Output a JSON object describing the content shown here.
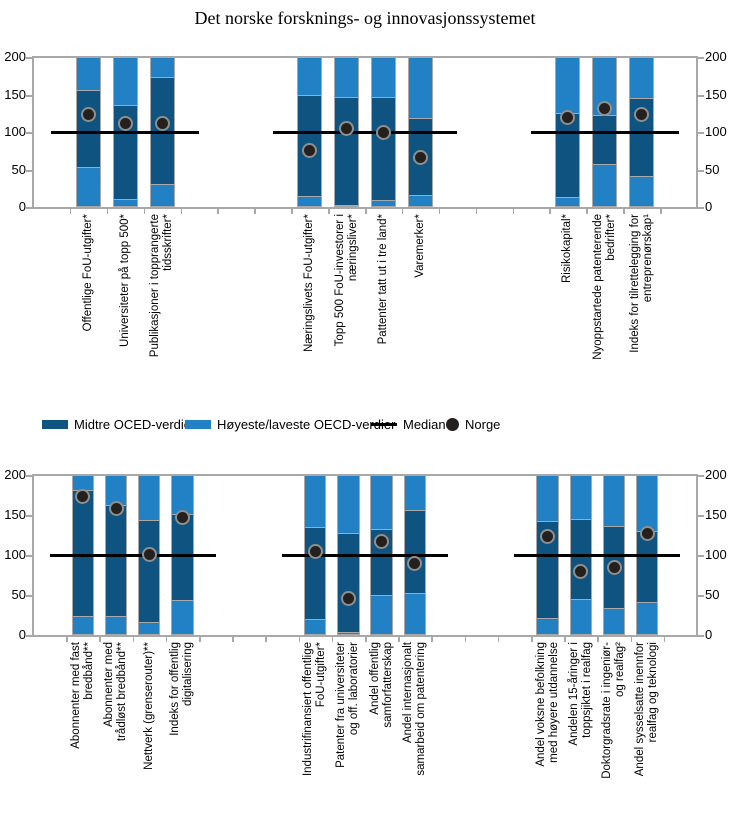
{
  "title": "Det norske forsknings- og innovasjonssystemet",
  "legend": {
    "items": [
      {
        "type": "swatch-dark",
        "label": "Midtre OCED-verdier"
      },
      {
        "type": "swatch-light",
        "label": "Høyeste/laveste OECD-verdier"
      },
      {
        "type": "line",
        "label": "Median"
      },
      {
        "type": "dot",
        "label": "Norge"
      }
    ]
  },
  "colors": {
    "mid": "#0f5380",
    "range": "#2280c4",
    "median": "#000000",
    "norway": "#24201e",
    "norway_ring": "#8f8f8f",
    "axis": "#a8a8a8",
    "segment_border": "#a8a8a8",
    "text": "#000000"
  },
  "chart_data": [
    {
      "panel": "top",
      "type": "bar",
      "ylim": [
        0,
        200
      ],
      "yticks": [
        0,
        50,
        100,
        150,
        200
      ],
      "median": 100,
      "legend_entries": [
        "Midtre OCED-verdier",
        "Høyeste/laveste OECD-verdier",
        "Median",
        "Norge"
      ],
      "groups": [
        {
          "bars": [
            {
              "label": "Offentlige FoU-utgifter*",
              "lines": [
                "Offentlige FoU-utgifter*"
              ],
              "range": [
                0,
                200
              ],
              "mid": [
                52,
                156
              ],
              "norge": 124
            },
            {
              "label": "Universiteter på topp 500*",
              "lines": [
                "Universiteter på topp 500*"
              ],
              "range": [
                0,
                200
              ],
              "mid": [
                9,
                136
              ],
              "norge": 112
            },
            {
              "label": "Publikasjoner i topprangerte tidsskrifter*",
              "lines": [
                "Publikasjoner i topprangerte",
                "tidsskrifter*"
              ],
              "range": [
                0,
                200
              ],
              "mid": [
                30,
                174
              ],
              "norge": 111
            }
          ]
        },
        {
          "bars": [
            {
              "label": "Næringslivets FoU-utgifter*",
              "lines": [
                "Næringslivets FoU-utgifter*"
              ],
              "range": [
                0,
                200
              ],
              "mid": [
                13,
                150
              ],
              "norge": 75
            },
            {
              "label": "Topp 500 FoU-investorer i næringsliver*",
              "lines": [
                "Topp 500 FoU-investorer i",
                "næringsliver*"
              ],
              "range": [
                0,
                200
              ],
              "mid": [
                2,
                147
              ],
              "norge": 105
            },
            {
              "label": "Pattenter tatt ut i tre land*",
              "lines": [
                "Pattenter tatt ut i tre land*"
              ],
              "range": [
                0,
                200
              ],
              "mid": [
                8,
                147
              ],
              "norge": 100
            },
            {
              "label": "Varemerker*",
              "lines": [
                "Varemerker*"
              ],
              "range": [
                0,
                200
              ],
              "mid": [
                15,
                119
              ],
              "norge": 66
            }
          ]
        },
        {
          "bars": [
            {
              "label": "Risikokapital*",
              "lines": [
                "Risikokapital*"
              ],
              "range": [
                0,
                200
              ],
              "mid": [
                12,
                125
              ],
              "norge": 120
            },
            {
              "label": "Nyoppstartede patenterende bedrifter*",
              "lines": [
                "Nyoppstartede patenterende",
                "bedrifter*"
              ],
              "range": [
                0,
                200
              ],
              "mid": [
                56,
                123
              ],
              "norge": 132
            },
            {
              "label": "Indeks for tilrettelegging for entreprenørskap¹",
              "lines": [
                "Indeks for tilrettelegging for",
                "entreprenørskap¹"
              ],
              "range": [
                0,
                200
              ],
              "mid": [
                40,
                145
              ],
              "norge": 124
            }
          ]
        }
      ]
    },
    {
      "panel": "bottom",
      "type": "bar",
      "ylim": [
        0,
        200
      ],
      "yticks": [
        0,
        50,
        100,
        150,
        200
      ],
      "median": 100,
      "legend_entries": [
        "Midtre OCED-verdier",
        "Høyeste/laveste OECD-verdier",
        "Median",
        "Norge"
      ],
      "groups": [
        {
          "bars": [
            {
              "label": "Abonnenter med fast bredbånd**",
              "lines": [
                "Abonnenter med fast",
                "bredbånd**"
              ],
              "range": [
                0,
                200
              ],
              "mid": [
                23,
                181
              ],
              "norge": 173
            },
            {
              "label": "Abonnenter med trådløst bredbånd**",
              "lines": [
                "Abonnenter med",
                "trådløst bredbånd**"
              ],
              "range": [
                0,
                200
              ],
              "mid": [
                22,
                163
              ],
              "norge": 158
            },
            {
              "label": "Nettverk (grenserouter)**",
              "lines": [
                "Nettverk (grenserouter)**"
              ],
              "range": [
                0,
                200
              ],
              "mid": [
                15,
                144
              ],
              "norge": 101
            },
            {
              "label": "Indeks for offentlig digitalisering",
              "lines": [
                "Indeks for offentlig",
                "digitalisering"
              ],
              "range": [
                0,
                200
              ],
              "mid": [
                43,
                151
              ],
              "norge": 147
            }
          ]
        },
        {
          "bars": [
            {
              "label": "Industrifinansiert offentlige FoU-utgifter*",
              "lines": [
                "Industrifinansiert offentlige",
                "FoU-utgifter*"
              ],
              "range": [
                0,
                200
              ],
              "mid": [
                19,
                135
              ],
              "norge": 104
            },
            {
              "label": "Patenter fra universiteter og off. laboratorier",
              "lines": [
                "Patenter fra universiteter",
                "og off. laboratorier"
              ],
              "range": [
                0,
                200
              ],
              "mid": [
                3,
                127
              ],
              "norge": 46
            },
            {
              "label": "Andel offentlig samforfatterskap",
              "lines": [
                "Andel offentlig",
                "samforfatterskap"
              ],
              "range": [
                0,
                200
              ],
              "mid": [
                49,
                132
              ],
              "norge": 117
            },
            {
              "label": "Andel internasjonalt samarbeid om patentering",
              "lines": [
                "Andel internasjonalt",
                "samarbeid om patentering"
              ],
              "range": [
                0,
                200
              ],
              "mid": [
                51,
                156
              ],
              "norge": 90
            }
          ]
        },
        {
          "bars": [
            {
              "label": "Andel voksne befolkning med høyere utdannelse",
              "lines": [
                "Andel voksne befolkning",
                "med høyere utdannelse"
              ],
              "range": [
                0,
                200
              ],
              "mid": [
                20,
                142
              ],
              "norge": 123
            },
            {
              "label": "Andelen 15-åringer i toppsjiktet i realfag",
              "lines": [
                "Andelen 15-åringer i",
                "toppsjiktet i realfag"
              ],
              "range": [
                0,
                200
              ],
              "mid": [
                44,
                145
              ],
              "norge": 79
            },
            {
              "label": "Doktorgradsrate i ingeniør- og realfag²",
              "lines": [
                "Doktorgradsrate i ingeniør-",
                "og realfag²"
              ],
              "range": [
                0,
                200
              ],
              "mid": [
                33,
                136
              ],
              "norge": 85
            },
            {
              "label": "Andel sysselsatte inennfor realfag og teknologi",
              "lines": [
                "Andel sysselsatte inennfor",
                "realfag og teknologi"
              ],
              "range": [
                0,
                200
              ],
              "mid": [
                40,
                130
              ],
              "norge": 127
            }
          ]
        }
      ]
    }
  ]
}
